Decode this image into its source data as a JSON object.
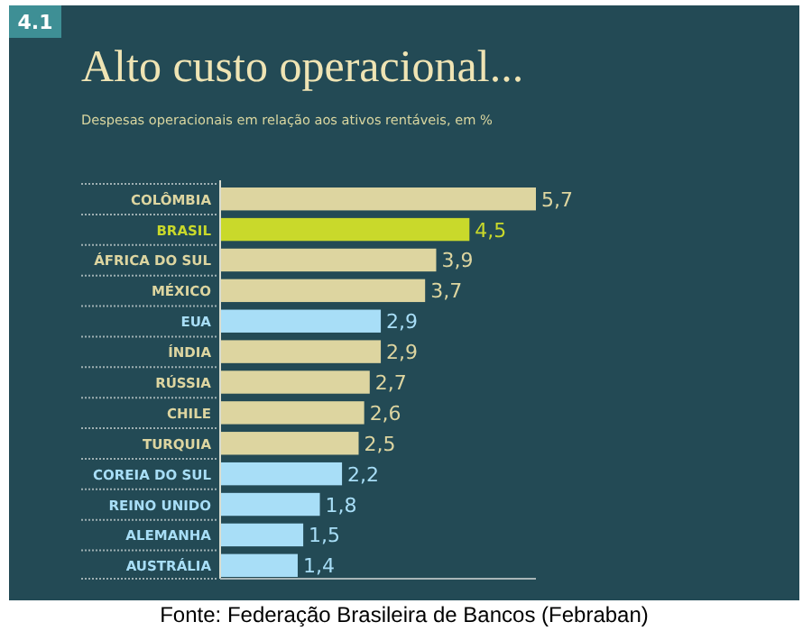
{
  "chart_data": {
    "type": "bar",
    "orientation": "horizontal",
    "title": "Alto custo operacional...",
    "subtitle": "Despesas operacionais em relação aos ativos rentáveis, em %",
    "categories": [
      "COLÔMBIA",
      "BRASIL",
      "ÁFRICA DO SUL",
      "MÉXICO",
      "EUA",
      "ÍNDIA",
      "RÚSSIA",
      "CHILE",
      "TURQUIA",
      "COREIA DO SUL",
      "REINO UNIDO",
      "ALEMANHA",
      "AUSTRÁLIA"
    ],
    "values": [
      5.7,
      4.5,
      3.9,
      3.7,
      2.9,
      2.9,
      2.7,
      2.6,
      2.5,
      2.2,
      1.8,
      1.5,
      1.4
    ],
    "colors": [
      "#ddd5a0",
      "#c9d92b",
      "#ddd5a0",
      "#ddd5a0",
      "#a8def7",
      "#ddd5a0",
      "#ddd5a0",
      "#ddd5a0",
      "#ddd5a0",
      "#a8def7",
      "#a8def7",
      "#a8def7",
      "#a8def7"
    ],
    "value_labels": [
      "5,7",
      "4,5",
      "3,9",
      "3,7",
      "2,9",
      "2,9",
      "2,7",
      "2,6",
      "2,5",
      "2,2",
      "1,8",
      "1,5",
      "1,4"
    ],
    "xlim": [
      0,
      5.7
    ],
    "annotations": [
      "4.1",
      "Fonte: Federação Brasileira de Bancos (Febraban)"
    ]
  }
}
